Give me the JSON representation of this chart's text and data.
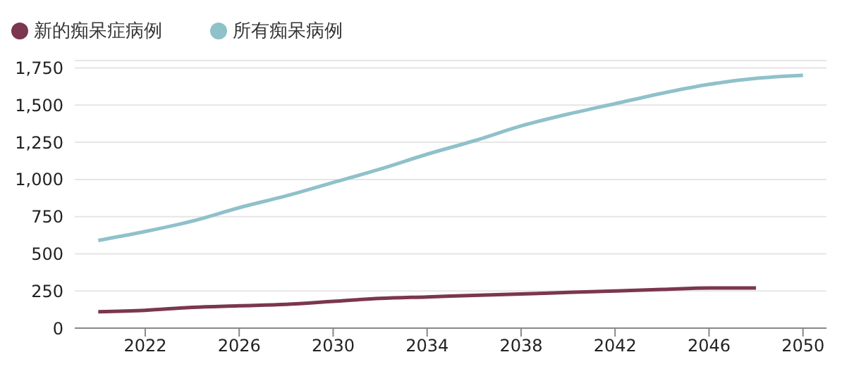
{
  "chart_data": {
    "type": "line",
    "x": [
      2020,
      2022,
      2024,
      2026,
      2028,
      2030,
      2032,
      2034,
      2036,
      2038,
      2040,
      2042,
      2044,
      2046,
      2048,
      2050
    ],
    "series": [
      {
        "name": "新的痴呆症病例",
        "color": "#7b3650",
        "values": [
          110,
          120,
          140,
          150,
          160,
          180,
          200,
          210,
          220,
          230,
          240,
          250,
          260,
          270,
          270,
          null
        ]
      },
      {
        "name": "所有痴呆病例",
        "color": "#8fc1c9",
        "values": [
          590,
          650,
          720,
          810,
          890,
          980,
          1070,
          1170,
          1260,
          1360,
          1440,
          1510,
          1580,
          1640,
          1680,
          1700
        ]
      }
    ],
    "xlim": [
      2019,
      2051
    ],
    "xticks": [
      2022,
      2026,
      2030,
      2034,
      2038,
      2042,
      2046,
      2050
    ],
    "ylim": [
      0,
      1800
    ],
    "yticks": [
      0,
      250,
      500,
      750,
      {
        "value": 1000,
        "label": "1,000"
      },
      {
        "value": 1250,
        "label": "1,250"
      },
      {
        "value": 1500,
        "label": "1,500"
      },
      {
        "value": 1750,
        "label": "1,750"
      }
    ],
    "grid": "y",
    "legend": "top left",
    "marker": "none",
    "line_style": "solid"
  }
}
